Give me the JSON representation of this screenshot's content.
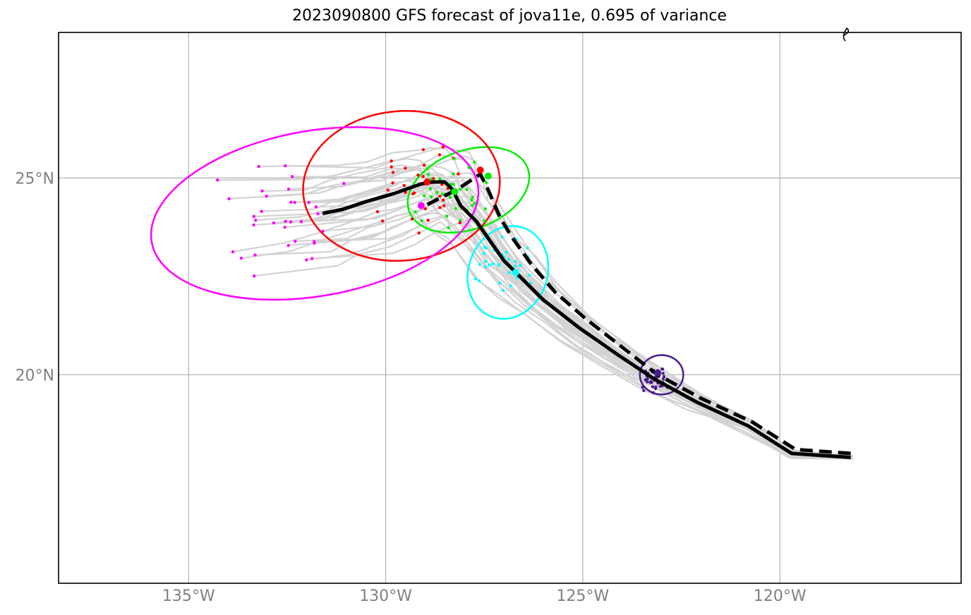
{
  "title": "2023090800 GFS forecast of jova11e, 0.695 of variance",
  "map": {
    "lon_range": [
      -138.3,
      -115.4
    ],
    "lat_range": [
      14.7,
      28.7
    ],
    "lon_ticks": [
      {
        "lon": -135,
        "label": "135°W"
      },
      {
        "lon": -130,
        "label": "130°W"
      },
      {
        "lon": -125,
        "label": "125°W"
      },
      {
        "lon": -120,
        "label": "120°W"
      }
    ],
    "lat_ticks": [
      {
        "lat": 25,
        "label": "25°N"
      },
      {
        "lat": 20,
        "label": "20°N"
      }
    ],
    "grid": true,
    "colors": {
      "grid": "#b0b0b0",
      "ensemble_track": "#d3d3d3",
      "mean_track": "#000000",
      "ring_1": "#4b1c8c",
      "ring_2": "#00ffff",
      "ring_3": "#00ee00",
      "ring_4": "#ff0000",
      "ring_5": "#ff00ff"
    },
    "mean_track_solid": [
      [
        -118.2,
        17.9
      ],
      [
        -119.7,
        18.0
      ],
      [
        -120.8,
        18.7
      ],
      [
        -122.1,
        19.3
      ],
      [
        -123.2,
        19.9
      ],
      [
        -124.1,
        20.5
      ],
      [
        -125.1,
        21.2
      ],
      [
        -126.0,
        21.9
      ],
      [
        -126.6,
        22.5
      ],
      [
        -127.0,
        22.9
      ],
      [
        -127.7,
        23.9
      ],
      [
        -128.1,
        24.3
      ],
      [
        -128.3,
        24.7
      ],
      [
        -128.5,
        24.9
      ],
      [
        -128.8,
        24.9
      ],
      [
        -129.1,
        24.85
      ],
      [
        -129.8,
        24.6
      ],
      [
        -130.5,
        24.4
      ],
      [
        -131.1,
        24.2
      ],
      [
        -131.6,
        24.1
      ]
    ],
    "mean_track_dashed": [
      [
        -118.2,
        18.0
      ],
      [
        -119.6,
        18.1
      ],
      [
        -120.7,
        18.8
      ],
      [
        -122.0,
        19.4
      ],
      [
        -123.1,
        20.0
      ],
      [
        -124.0,
        20.7
      ],
      [
        -124.9,
        21.4
      ],
      [
        -125.7,
        22.1
      ],
      [
        -126.3,
        22.8
      ],
      [
        -126.8,
        23.5
      ],
      [
        -127.1,
        24.0
      ],
      [
        -127.4,
        24.7
      ],
      [
        -127.6,
        25.1
      ],
      [
        -127.9,
        24.9
      ],
      [
        -128.2,
        24.7
      ],
      [
        -128.6,
        24.5
      ],
      [
        -129.0,
        24.3
      ]
    ],
    "mean_positions": [
      {
        "lon": -123.1,
        "lat": 20.05,
        "color": "#4b1c8c"
      },
      {
        "lon": -126.7,
        "lat": 22.6,
        "color": "#00ffff"
      },
      {
        "lon": -127.4,
        "lat": 25.05,
        "color": "#00ee00"
      },
      {
        "lon": -127.6,
        "lat": 25.2,
        "color": "#ff0000"
      },
      {
        "lon": -128.95,
        "lat": 24.9,
        "color": "#ff0000"
      },
      {
        "lon": -129.1,
        "lat": 24.3,
        "color": "#ff00ff"
      },
      {
        "lon": -128.25,
        "lat": 24.65,
        "color": "#00ee00"
      }
    ],
    "uncertainty_rings": [
      {
        "color": "#4b1c8c",
        "center": [
          -123.0,
          20.0
        ],
        "rx_deg": 0.55,
        "ry_deg": 0.5,
        "rotate": 0
      },
      {
        "color": "#00ffff",
        "center": [
          -126.9,
          22.6
        ],
        "rx_deg": 1.0,
        "ry_deg": 1.2,
        "rotate": 20
      },
      {
        "color": "#00ee00",
        "center": [
          -127.9,
          24.7
        ],
        "rx_deg": 1.6,
        "ry_deg": 1.0,
        "rotate": -20
      },
      {
        "color": "#ff0000",
        "center": [
          -129.6,
          24.8
        ],
        "rx_deg": 2.5,
        "ry_deg": 1.9,
        "rotate": -5
      },
      {
        "color": "#ff00ff",
        "center": [
          -131.8,
          24.1
        ],
        "rx_deg": 4.2,
        "ry_deg": 2.1,
        "rotate": -10
      }
    ]
  }
}
